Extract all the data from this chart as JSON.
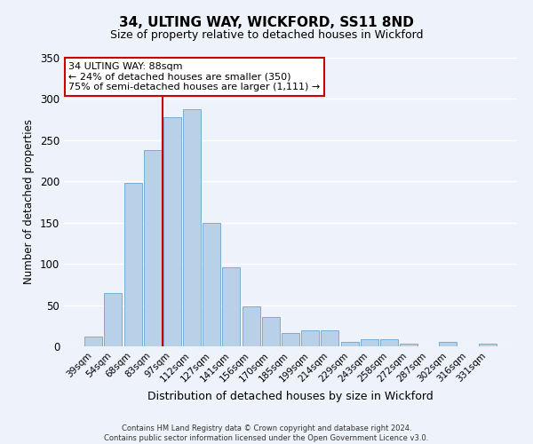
{
  "title": "34, ULTING WAY, WICKFORD, SS11 8ND",
  "subtitle": "Size of property relative to detached houses in Wickford",
  "xlabel": "Distribution of detached houses by size in Wickford",
  "ylabel": "Number of detached properties",
  "categories": [
    "39sqm",
    "54sqm",
    "68sqm",
    "83sqm",
    "97sqm",
    "112sqm",
    "127sqm",
    "141sqm",
    "156sqm",
    "170sqm",
    "185sqm",
    "199sqm",
    "214sqm",
    "229sqm",
    "243sqm",
    "258sqm",
    "272sqm",
    "287sqm",
    "302sqm",
    "316sqm",
    "331sqm"
  ],
  "values": [
    12,
    65,
    198,
    238,
    278,
    288,
    150,
    96,
    49,
    36,
    16,
    19,
    19,
    5,
    9,
    9,
    3,
    0,
    5,
    0,
    3
  ],
  "bar_color": "#b8d0e8",
  "bar_edge_color": "#7aadd4",
  "background_color": "#eef2fa",
  "grid_color": "#ffffff",
  "annotation_line1": "34 ULTING WAY: 88sqm",
  "annotation_line2": "← 24% of detached houses are smaller (350)",
  "annotation_line3": "75% of semi-detached houses are larger (1,111) →",
  "red_line_color": "#cc0000",
  "ylim": [
    0,
    350
  ],
  "yticks": [
    0,
    50,
    100,
    150,
    200,
    250,
    300,
    350
  ],
  "footer_line1": "Contains HM Land Registry data © Crown copyright and database right 2024.",
  "footer_line2": "Contains public sector information licensed under the Open Government Licence v3.0."
}
